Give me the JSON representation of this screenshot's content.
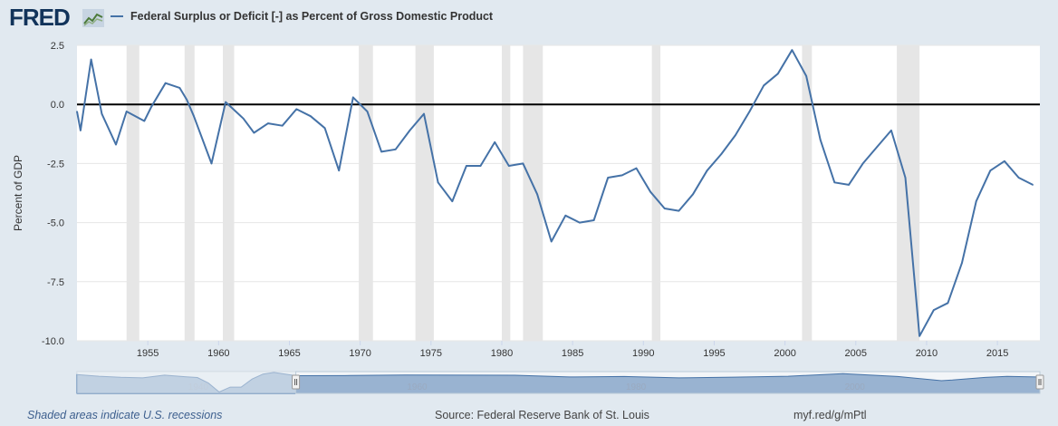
{
  "header": {
    "logo_text": "FRED",
    "logo_icon": "line-chart-icon",
    "legend_label": "Federal Surplus or Deficit [-] as Percent of Gross Domestic Product",
    "legend_color": "#4572a7"
  },
  "chart_data": {
    "type": "line",
    "title": "",
    "xlabel": "",
    "ylabel": "Percent of GDP",
    "xlim": [
      1950,
      2018
    ],
    "ylim": [
      -10.0,
      2.5
    ],
    "yticks": [
      2.5,
      0.0,
      -2.5,
      -5.0,
      -7.5,
      -10.0
    ],
    "ytick_labels": [
      "2.5",
      "0.0",
      "-2.5",
      "-5.0",
      "-7.5",
      "-10.0"
    ],
    "xticks": [
      1955,
      1960,
      1965,
      1970,
      1975,
      1980,
      1985,
      1990,
      1995,
      2000,
      2005,
      2010,
      2015
    ],
    "xtick_labels": [
      "1955",
      "1960",
      "1965",
      "1970",
      "1975",
      "1980",
      "1985",
      "1990",
      "1995",
      "2000",
      "2005",
      "2010",
      "2015"
    ],
    "zero_line": true,
    "recession_color": "#e6e6e6",
    "recessions": [
      [
        1953.5,
        1954.4
      ],
      [
        1957.6,
        1958.3
      ],
      [
        1960.3,
        1961.1
      ],
      [
        1969.9,
        1970.9
      ],
      [
        1973.9,
        1975.2
      ],
      [
        1980.0,
        1980.6
      ],
      [
        1981.5,
        1982.9
      ],
      [
        1990.6,
        1991.2
      ],
      [
        2001.2,
        2001.9
      ],
      [
        2007.9,
        2009.5
      ]
    ],
    "series": [
      {
        "color": "#4572a7",
        "x": [
          1950,
          1950.25,
          1951,
          1951.75,
          1952.75,
          1953.5,
          1954.75,
          1955.25,
          1956.25,
          1957.25,
          1957.75,
          1958.25,
          1959.5,
          1960.5,
          1961.75,
          1962.5,
          1963.5,
          1964.5,
          1965.5,
          1966.5,
          1967.5,
          1968.5,
          1969.5,
          1970.5,
          1971.5,
          1972.5,
          1973.5,
          1974.5,
          1975.5,
          1976.5,
          1977.5,
          1978.5,
          1979.5,
          1980.5,
          1981.5,
          1982.5,
          1983.5,
          1984.5,
          1985.5,
          1986.5,
          1987.5,
          1988.5,
          1989.5,
          1990.5,
          1991.5,
          1992.5,
          1993.5,
          1994.5,
          1995.5,
          1996.5,
          1997.5,
          1998.5,
          1999.5,
          2000.5,
          2001.5,
          2002.5,
          2003.5,
          2004.5,
          2005.5,
          2006.5,
          2007.5,
          2008.5,
          2009.5,
          2010.5,
          2011.5,
          2012.5,
          2013.5,
          2014.5,
          2015.5,
          2016.5,
          2017.5
        ],
        "values": [
          -0.3,
          -1.1,
          1.9,
          -0.4,
          -1.7,
          -0.3,
          -0.7,
          -0.1,
          0.9,
          0.7,
          0.2,
          -0.5,
          -2.5,
          0.1,
          -0.6,
          -1.2,
          -0.8,
          -0.9,
          -0.2,
          -0.5,
          -1.0,
          -2.8,
          0.3,
          -0.3,
          -2.0,
          -1.9,
          -1.1,
          -0.4,
          -3.3,
          -4.1,
          -2.6,
          -2.6,
          -1.6,
          -2.6,
          -2.5,
          -3.8,
          -5.8,
          -4.7,
          -5.0,
          -4.9,
          -3.1,
          -3.0,
          -2.7,
          -3.7,
          -4.4,
          -4.5,
          -3.8,
          -2.8,
          -2.1,
          -1.3,
          -0.3,
          0.8,
          1.3,
          2.3,
          1.2,
          -1.5,
          -3.3,
          -3.4,
          -2.5,
          -1.8,
          -1.1,
          -3.1,
          -9.8,
          -8.7,
          -8.4,
          -6.7,
          -4.1,
          -2.8,
          -2.4,
          -3.1,
          -3.4
        ]
      }
    ]
  },
  "navigator": {
    "year_labels": [
      "1940",
      "1960",
      "1980",
      "2000"
    ],
    "left_handle_icon": "drag-handle-icon",
    "right_handle_icon": "drag-handle-icon",
    "window_start": 1950,
    "window_end": 2018,
    "series": [
      {
        "x": [
          1930,
          1932,
          1934,
          1936,
          1938,
          1940,
          1941,
          1942,
          1943,
          1944,
          1945,
          1946,
          1947,
          1948,
          1950,
          1955,
          1960,
          1965,
          1970,
          1975,
          1980,
          1985,
          1990,
          1995,
          2000,
          2005,
          2009,
          2010,
          2013,
          2015,
          2018
        ],
        "values": [
          0.8,
          -2.0,
          -4.0,
          -5.0,
          -0.1,
          -3.0,
          -4.3,
          -13.9,
          -29.6,
          -21.0,
          -21.0,
          -7.0,
          1.7,
          4.5,
          -1.1,
          -0.8,
          0.1,
          -0.2,
          -0.3,
          -3.3,
          -2.6,
          -5.0,
          -3.7,
          -2.1,
          2.3,
          -2.5,
          -9.8,
          -8.7,
          -4.1,
          -2.4,
          -3.4
        ]
      }
    ]
  },
  "footer": {
    "recession_note": "Shaded areas indicate U.S. recessions",
    "source": "Source: Federal Reserve Bank of St. Louis",
    "short_link": "myf.red/g/mPtl"
  }
}
